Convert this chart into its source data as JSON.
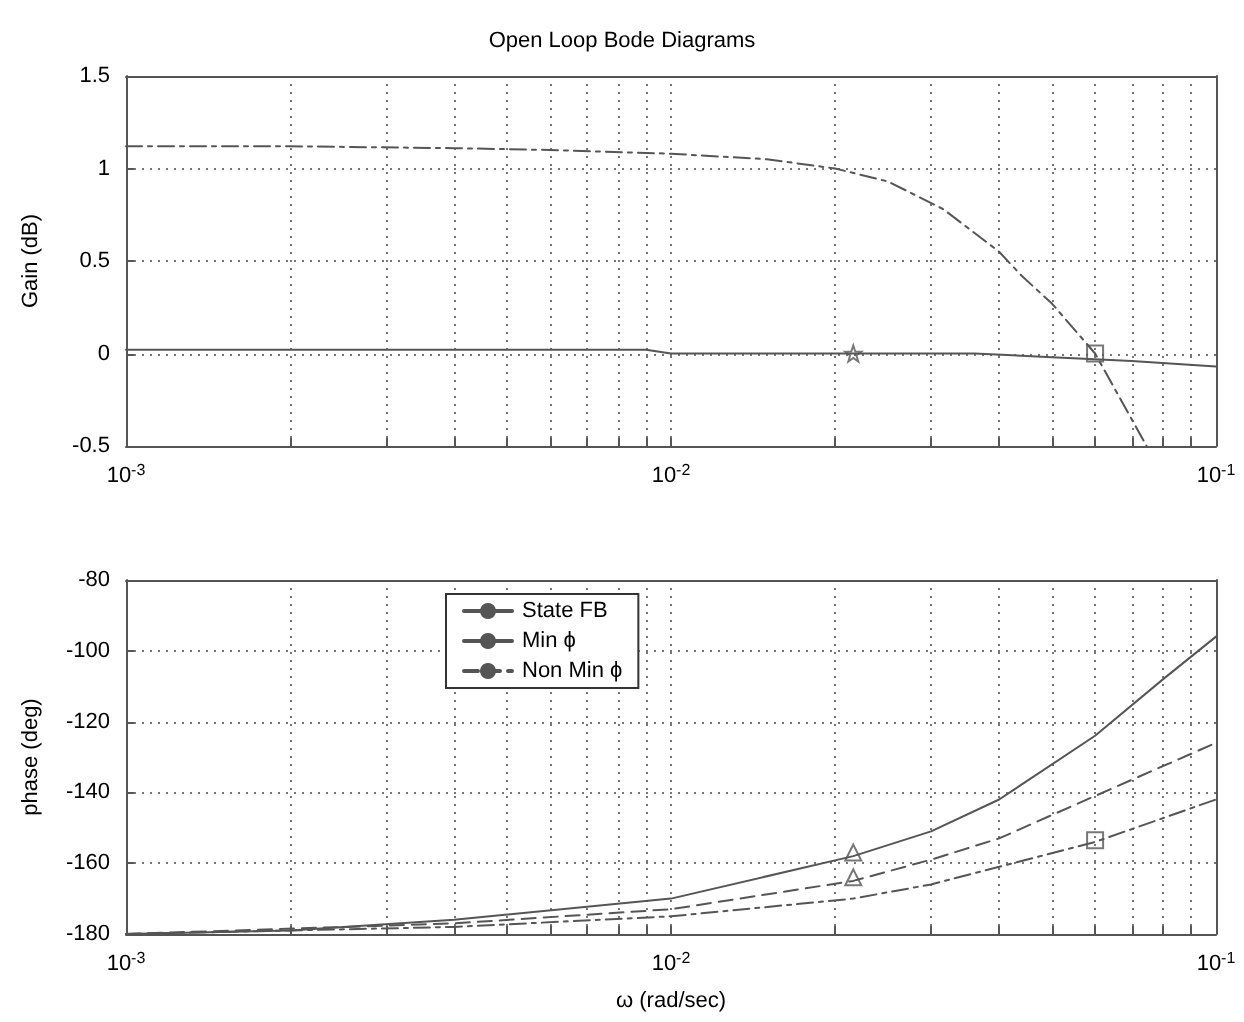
{
  "chart_data": [
    {
      "type": "line",
      "title": "Open Loop Bode Diagrams",
      "ylabel": "Gain (dB)",
      "grid": true,
      "legend": false,
      "log": "x",
      "xlim": [
        0.001,
        0.1
      ],
      "xticks": [
        {
          "value": 0.001,
          "label": "10$^{-3}$"
        },
        {
          "value": 0.002,
          "label": null
        },
        {
          "value": 0.003,
          "label": null
        },
        {
          "value": 0.004,
          "label": null
        },
        {
          "value": 0.005,
          "label": null
        },
        {
          "value": 0.006,
          "label": null
        },
        {
          "value": 0.007,
          "label": null
        },
        {
          "value": 0.008,
          "label": null
        },
        {
          "value": 0.009,
          "label": null
        },
        {
          "value": 0.01,
          "label": "10$^{-2}$"
        },
        {
          "value": 0.02,
          "label": null
        },
        {
          "value": 0.03,
          "label": null
        },
        {
          "value": 0.04,
          "label": null
        },
        {
          "value": 0.05,
          "label": null
        },
        {
          "value": 0.06,
          "label": null
        },
        {
          "value": 0.07,
          "label": null
        },
        {
          "value": 0.08,
          "label": null
        },
        {
          "value": 0.09,
          "label": null
        },
        {
          "value": 0.1,
          "label": "10$^{-1}$"
        }
      ],
      "ylim": [
        -0.5,
        1.5
      ],
      "yticks": [
        -0.5,
        0,
        0.5,
        1,
        1.5
      ],
      "series": [
        {
          "color": "#555555",
          "line_style": "dashdot",
          "x": [
            0.001,
            0.002,
            0.004,
            0.006,
            0.01,
            0.015,
            0.02,
            0.025,
            0.0316,
            0.04,
            0.044,
            0.05,
            0.06,
            0.0746
          ],
          "values": [
            1.12,
            1.12,
            1.11,
            1.1,
            1.08,
            1.05,
            1.0,
            0.93,
            0.78,
            0.55,
            0.42,
            0.27,
            0.0,
            -0.5
          ]
        },
        {
          "color": "#555555",
          "line_style": "solid",
          "x": [
            0.001,
            0.009,
            0.01,
            0.036,
            0.05,
            0.07,
            0.1
          ],
          "values": [
            0.02,
            0.02,
            0.0,
            0.0,
            -0.02,
            -0.04,
            -0.07
          ]
        },
        {
          "type": "scatter",
          "color": "#555555",
          "marker": "star",
          "x": [
            0.0216
          ],
          "values": [
            0
          ]
        },
        {
          "type": "scatter",
          "color": "#555555",
          "marker": "square",
          "x": [
            0.06
          ],
          "values": [
            0
          ]
        }
      ]
    },
    {
      "type": "line",
      "xlabel": "ω (rad/sec)",
      "ylabel": "phase (deg)",
      "grid": true,
      "legend": "top left",
      "log": "x",
      "xlim": [
        0.001,
        0.1
      ],
      "xticks": [
        {
          "value": 0.001,
          "label": "10$^{-3}$"
        },
        {
          "value": 0.002,
          "label": null
        },
        {
          "value": 0.003,
          "label": null
        },
        {
          "value": 0.004,
          "label": null
        },
        {
          "value": 0.005,
          "label": null
        },
        {
          "value": 0.006,
          "label": null
        },
        {
          "value": 0.007,
          "label": null
        },
        {
          "value": 0.008,
          "label": null
        },
        {
          "value": 0.009,
          "label": null
        },
        {
          "value": 0.01,
          "label": "10$^{-2}$"
        },
        {
          "value": 0.02,
          "label": null
        },
        {
          "value": 0.03,
          "label": null
        },
        {
          "value": 0.04,
          "label": null
        },
        {
          "value": 0.05,
          "label": null
        },
        {
          "value": 0.06,
          "label": null
        },
        {
          "value": 0.07,
          "label": null
        },
        {
          "value": 0.08,
          "label": null
        },
        {
          "value": 0.09,
          "label": null
        },
        {
          "value": 0.1,
          "label": "10$^{-1}$"
        }
      ],
      "ylim": [
        -180,
        -80
      ],
      "yticks": [
        -180,
        -160,
        -140,
        -120,
        -100,
        -80
      ],
      "series": [
        {
          "name": "State FB",
          "color": "#555555",
          "line_style": "dashdot",
          "x": [
            0.001,
            0.004,
            0.01,
            0.0216,
            0.03,
            0.06,
            0.1
          ],
          "values": [
            -180,
            -178,
            -175,
            -170,
            -166,
            -154,
            -142
          ]
        },
        {
          "name": "Min ϕ",
          "color": "#555555",
          "line_style": "solid",
          "x": [
            0.001,
            0.002,
            0.004,
            0.01,
            0.0216,
            0.03,
            0.04,
            0.06,
            0.08,
            0.1
          ],
          "values": [
            -180,
            -179,
            -176,
            -170,
            -158,
            -151,
            -142,
            -124,
            -108,
            -96
          ]
        },
        {
          "name": "Non Min ϕ",
          "color": "#555555",
          "line_style": "dashed",
          "x": [
            0.001,
            0.004,
            0.01,
            0.0216,
            0.03,
            0.04,
            0.06,
            0.1
          ],
          "values": [
            -180,
            -177,
            -173,
            -165,
            -159,
            -153,
            -141,
            -126
          ]
        },
        {
          "type": "scatter",
          "color": "#555555",
          "marker": "triangle",
          "x": [
            0.0216
          ],
          "values": [
            -157
          ]
        },
        {
          "type": "scatter",
          "color": "#555555",
          "marker": "triangle",
          "x": [
            0.0216
          ],
          "values": [
            -164
          ]
        },
        {
          "type": "scatter",
          "color": "#555555",
          "marker": "square",
          "x": [
            0.06
          ],
          "values": [
            -153.5
          ]
        }
      ]
    }
  ]
}
